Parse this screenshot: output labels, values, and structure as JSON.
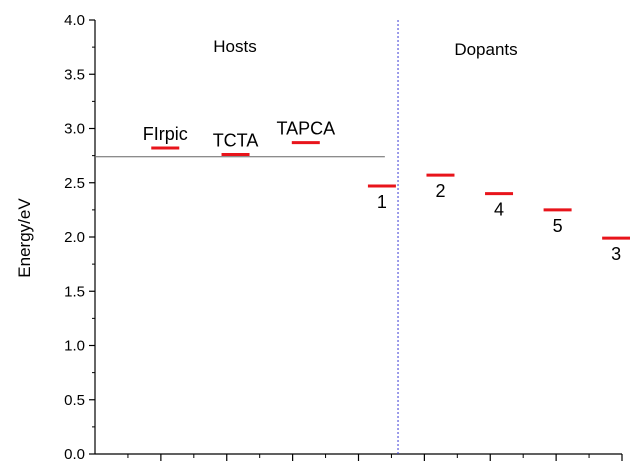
{
  "chart_data": {
    "type": "scatter",
    "title": "",
    "xlabel": "",
    "ylabel": "Energy/eV",
    "ylim": [
      0.0,
      4.0
    ],
    "xlim": [
      0,
      8
    ],
    "grid": false,
    "legend": "none",
    "yticks": [
      "0.0",
      "0.5",
      "1.0",
      "1.5",
      "2.0",
      "2.5",
      "3.0",
      "3.5",
      "4.0"
    ],
    "regions": [
      {
        "label": "Hosts"
      },
      {
        "label": "Dopants"
      }
    ],
    "divider_x": 4.6,
    "reference_line": {
      "y": 2.74,
      "x_from": 0,
      "x_to": 4.4
    },
    "levels": [
      {
        "label": "FIrpic",
        "x": 1.2,
        "y": 2.82,
        "label_side": "above"
      },
      {
        "label": "TCTA",
        "x": 2.4,
        "y": 2.76,
        "label_side": "above"
      },
      {
        "label": "TAPCA",
        "x": 3.6,
        "y": 2.87,
        "label_side": "above"
      },
      {
        "label": "1",
        "x": 4.9,
        "y": 2.47,
        "label_side": "below"
      },
      {
        "label": "2",
        "x": 5.9,
        "y": 2.57,
        "label_side": "below"
      },
      {
        "label": "4",
        "x": 6.9,
        "y": 2.4,
        "label_side": "below"
      },
      {
        "label": "5",
        "x": 7.9,
        "y": 2.25,
        "label_side": "below"
      },
      {
        "label": "3",
        "x": 8.9,
        "y": 1.99,
        "label_side": "below"
      }
    ]
  },
  "colors": {
    "level": "#e8141b",
    "divider": "#3b3bd6",
    "reference": "#666666",
    "axis": "#000000"
  }
}
